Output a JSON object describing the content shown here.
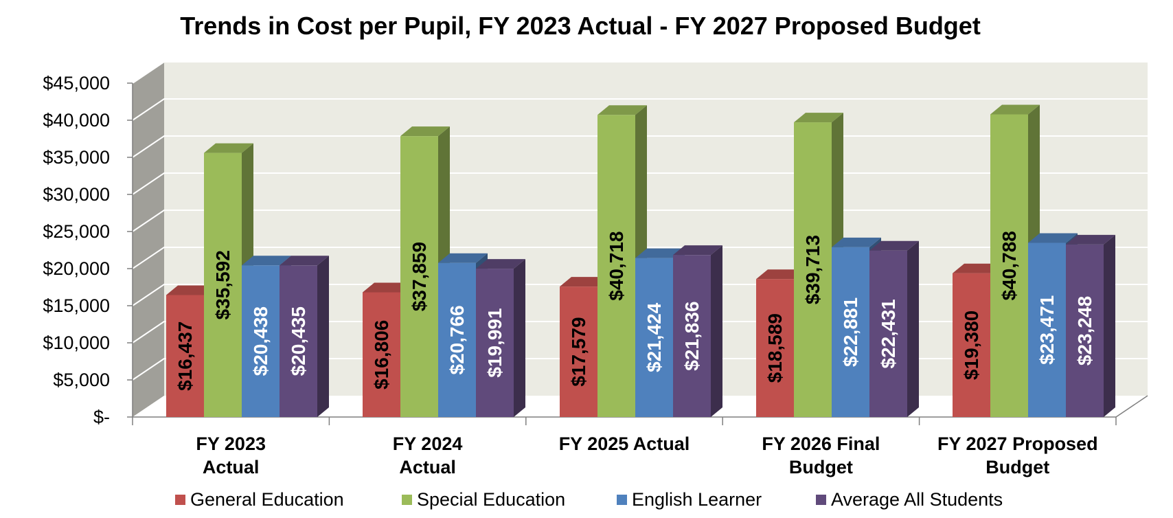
{
  "chart_data": {
    "type": "bar",
    "title": "Trends in Cost per Pupil, FY 2023 Actual - FY 2027 Proposed Budget",
    "xlabel": "",
    "ylabel": "",
    "ylim": [
      0,
      45000
    ],
    "ytick_values": [
      0,
      5000,
      10000,
      15000,
      20000,
      25000,
      30000,
      35000,
      40000,
      45000
    ],
    "ytick_labels": [
      "$-",
      "$5,000",
      "$10,000",
      "$15,000",
      "$20,000",
      "$25,000",
      "$30,000",
      "$35,000",
      "$40,000",
      "$45,000"
    ],
    "categories": [
      [
        "FY 2023",
        "Actual"
      ],
      [
        "FY 2024",
        "Actual"
      ],
      [
        "FY 2025 Actual"
      ],
      [
        "FY 2026 Final",
        "Budget"
      ],
      [
        "FY 2027 Proposed",
        "Budget"
      ]
    ],
    "series": [
      {
        "name": "General Education",
        "color": "#c0504d",
        "values": [
          16437,
          16806,
          17579,
          18589,
          19380
        ],
        "labels": [
          "$16,437",
          "$16,806",
          "$17,579",
          "$18,589",
          "$19,380"
        ],
        "label_color": "#000000"
      },
      {
        "name": "Special Education",
        "color": "#9bbb59",
        "values": [
          35592,
          37859,
          40718,
          39713,
          40788
        ],
        "labels": [
          "$35,592",
          "$37,859",
          "$40,718",
          "$39,713",
          "$40,788"
        ],
        "label_color": "#000000"
      },
      {
        "name": "English Learner",
        "color": "#4f81bd",
        "values": [
          20438,
          20766,
          21424,
          22881,
          23471
        ],
        "labels": [
          "$20,438",
          "$20,766",
          "$21,424",
          "$22,881",
          "$23,471"
        ],
        "label_color": "#ffffff"
      },
      {
        "name": "Average All Students",
        "color": "#604a7b",
        "values": [
          20435,
          19991,
          21836,
          22431,
          23248
        ],
        "labels": [
          "$20,435",
          "$19,991",
          "$21,836",
          "$22,431",
          "$23,248"
        ],
        "label_color": "#ffffff"
      }
    ],
    "legend_position": "bottom",
    "grid": true,
    "style": "3d-clustered-column",
    "colors": {
      "wall": "#ebebe3",
      "side_wall": "#a09f99",
      "floor": "#ffffff",
      "gridline": "#ffffff"
    }
  }
}
